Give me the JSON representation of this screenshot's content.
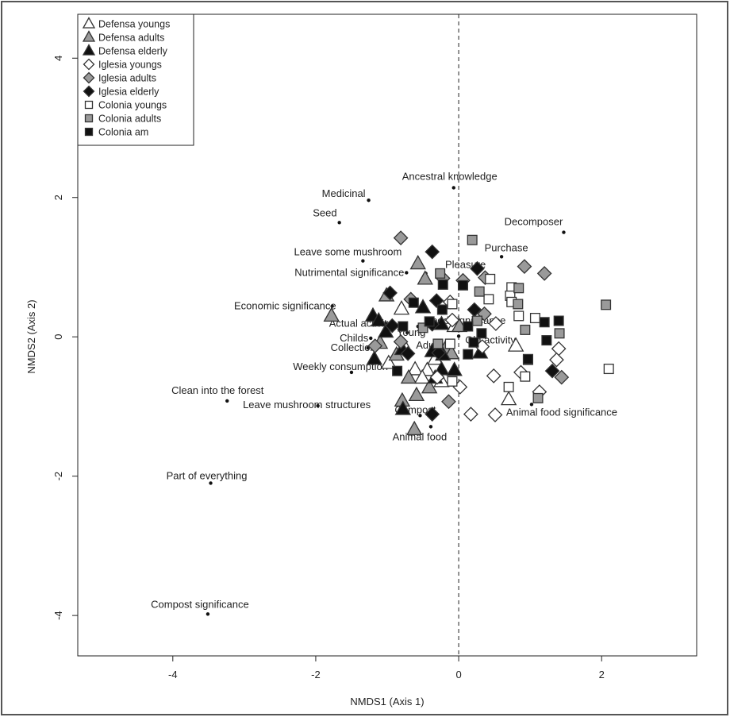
{
  "chart_data": {
    "type": "scatter",
    "title": "",
    "xlabel": "NMDS1 (Axis 1)",
    "ylabel": "NMDS2 (Axis 2)",
    "xlim": [
      -5.33,
      3.33
    ],
    "ylim": [
      -4.58,
      4.63
    ],
    "xticks": [
      -4,
      -2,
      0,
      2
    ],
    "yticks": [
      -4,
      -2,
      0,
      2,
      4
    ],
    "xtick_labels": [
      "-4",
      "-2",
      "0",
      "2"
    ],
    "ytick_labels": [
      "-4",
      "-2",
      "0",
      "2",
      "4"
    ],
    "grid": false,
    "reference_line": {
      "axis": "x",
      "value": 0,
      "style": "dashed"
    },
    "legend_position": "top-left",
    "colors": {
      "open": "#ffffff",
      "gray": "#9a9a9a",
      "black": "#111111",
      "stroke": "#333333"
    },
    "series": [
      {
        "name": "Defensa youngs",
        "marker": "triangle",
        "fill": "open",
        "points": [
          [
            -0.8,
            0.4
          ],
          [
            0.8,
            -0.13
          ],
          [
            0.7,
            -0.9
          ],
          [
            -0.98,
            -0.38
          ],
          [
            -0.33,
            -0.32
          ],
          [
            -0.24,
            -0.64
          ],
          [
            -0.44,
            -0.48
          ],
          [
            -0.12,
            -0.24
          ],
          [
            -0.61,
            -0.47
          ],
          [
            -0.76,
            -0.14
          ],
          [
            -0.06,
            0.15
          ],
          [
            -0.51,
            -0.59
          ]
        ]
      },
      {
        "name": "Defensa adults",
        "marker": "triangle",
        "fill": "gray",
        "points": [
          [
            -0.57,
            1.05
          ],
          [
            -0.47,
            0.83
          ],
          [
            -1.01,
            0.59
          ],
          [
            -1.78,
            0.3
          ],
          [
            -0.7,
            -0.59
          ],
          [
            -0.59,
            -0.84
          ],
          [
            -0.62,
            -1.33
          ],
          [
            -0.79,
            -0.92
          ],
          [
            0.01,
            0.15
          ],
          [
            -0.18,
            -0.16
          ],
          [
            -0.41,
            -0.73
          ],
          [
            -0.1,
            -0.24
          ],
          [
            -1.1,
            -0.09
          ],
          [
            -0.87,
            -0.26
          ]
        ]
      },
      {
        "name": "Defensa elderly",
        "marker": "triangle",
        "fill": "black",
        "points": [
          [
            -0.5,
            0.42
          ],
          [
            -1.2,
            0.3
          ],
          [
            -1.12,
            0.23
          ],
          [
            -1.02,
            0.07
          ],
          [
            -1.18,
            -0.32
          ],
          [
            -0.37,
            -0.21
          ],
          [
            -0.79,
            -0.18
          ],
          [
            -0.24,
            -0.47
          ],
          [
            -0.06,
            -0.48
          ],
          [
            -0.33,
            -0.59
          ],
          [
            -0.78,
            -1.04
          ],
          [
            0.3,
            -0.23
          ],
          [
            -0.22,
            -0.26
          ],
          [
            -0.24,
            0.18
          ]
        ]
      },
      {
        "name": "Iglesia youngs",
        "marker": "diamond",
        "fill": "open",
        "points": [
          [
            0.02,
            -0.72
          ],
          [
            0.33,
            -0.14
          ],
          [
            0.87,
            -0.51
          ],
          [
            1.4,
            -0.17
          ],
          [
            1.37,
            -0.33
          ],
          [
            1.13,
            -0.79
          ],
          [
            0.17,
            -1.11
          ],
          [
            0.51,
            -1.12
          ],
          [
            0.49,
            -0.56
          ],
          [
            -0.12,
            0.5
          ],
          [
            -0.09,
            0.24
          ],
          [
            -0.3,
            -0.58
          ],
          [
            0.52,
            0.19
          ]
        ]
      },
      {
        "name": "Iglesia adults",
        "marker": "diamond",
        "fill": "gray",
        "points": [
          [
            -0.81,
            1.42
          ],
          [
            0.92,
            1.01
          ],
          [
            1.2,
            0.91
          ],
          [
            0.36,
            0.33
          ],
          [
            -1.17,
            -0.13
          ],
          [
            -0.22,
            0.84
          ],
          [
            -0.67,
            0.54
          ],
          [
            0.06,
            0.81
          ],
          [
            -0.14,
            -0.93
          ],
          [
            1.44,
            -0.58
          ],
          [
            0.37,
            0.85
          ],
          [
            -0.81,
            -0.07
          ]
        ]
      },
      {
        "name": "Iglesia elderly",
        "marker": "diamond",
        "fill": "black",
        "points": [
          [
            -0.37,
            1.22
          ],
          [
            0.26,
            0.98
          ],
          [
            -0.96,
            0.63
          ],
          [
            -0.31,
            0.52
          ],
          [
            0.22,
            0.39
          ],
          [
            -0.37,
            0.18
          ],
          [
            -0.71,
            -0.24
          ],
          [
            -0.28,
            -0.23
          ],
          [
            -0.37,
            -1.11
          ],
          [
            1.31,
            -0.49
          ],
          [
            -0.93,
            0.16
          ]
        ]
      },
      {
        "name": "Colonia youngs",
        "marker": "square",
        "fill": "open",
        "points": [
          [
            0.44,
            0.83
          ],
          [
            0.74,
            0.71
          ],
          [
            0.72,
            0.59
          ],
          [
            0.74,
            0.5
          ],
          [
            0.42,
            0.54
          ],
          [
            0.84,
            0.3
          ],
          [
            1.07,
            0.27
          ],
          [
            0.93,
            -0.57
          ],
          [
            0.7,
            -0.72
          ],
          [
            2.1,
            -0.46
          ],
          [
            -0.09,
            -0.64
          ],
          [
            -0.09,
            0.47
          ],
          [
            -0.12,
            -0.1
          ]
        ]
      },
      {
        "name": "Colonia adults",
        "marker": "square",
        "fill": "gray",
        "points": [
          [
            0.19,
            1.39
          ],
          [
            -0.26,
            0.91
          ],
          [
            0.84,
            0.7
          ],
          [
            0.83,
            0.47
          ],
          [
            0.29,
            0.65
          ],
          [
            0.93,
            0.1
          ],
          [
            1.41,
            0.05
          ],
          [
            2.06,
            0.46
          ],
          [
            1.11,
            -0.88
          ],
          [
            0.97,
            -0.33
          ],
          [
            -0.29,
            -0.1
          ],
          [
            -0.5,
            0.13
          ],
          [
            0.26,
            0.23
          ]
        ]
      },
      {
        "name": "Colonia am",
        "marker": "square",
        "fill": "black",
        "points": [
          [
            -0.22,
            0.75
          ],
          [
            0.06,
            0.74
          ],
          [
            -0.23,
            0.39
          ],
          [
            -0.78,
            0.15
          ],
          [
            -0.63,
            0.49
          ],
          [
            0.32,
            0.05
          ],
          [
            0.13,
            -0.25
          ],
          [
            1.2,
            0.21
          ],
          [
            1.4,
            0.23
          ],
          [
            1.23,
            -0.05
          ],
          [
            0.97,
            -0.32
          ],
          [
            -0.86,
            -0.49
          ],
          [
            -0.41,
            0.22
          ],
          [
            0.21,
            -0.08
          ],
          [
            0.13,
            0.15
          ]
        ]
      }
    ],
    "variables": [
      {
        "label": "Ancestral knowledge",
        "x": -0.07,
        "y": 2.14
      },
      {
        "label": "Medicinal",
        "x": -1.26,
        "y": 1.96
      },
      {
        "label": "Seed",
        "x": -1.67,
        "y": 1.64
      },
      {
        "label": "Decomposer",
        "x": 1.47,
        "y": 1.5
      },
      {
        "label": "Purchase",
        "x": 0.6,
        "y": 1.15
      },
      {
        "label": "Leave some mushroom",
        "x": -1.34,
        "y": 1.09
      },
      {
        "label": "Pleasure",
        "x": -0.46,
        "y": 0.91
      },
      {
        "label": "Nutrimental significance",
        "x": -0.73,
        "y": 0.92
      },
      {
        "label": "Economic significance",
        "x": -1.77,
        "y": 0.44
      },
      {
        "label": "Actual activity",
        "x": -1.02,
        "y": 0.19
      },
      {
        "label": "Food significance",
        "x": -0.57,
        "y": 0.15
      },
      {
        "label": "Childs",
        "x": -1.23,
        "y": -0.02
      },
      {
        "label": "Young",
        "x": -0.72,
        "y": 0.06
      },
      {
        "label": "Adult",
        "x": -0.3,
        "y": -0.08
      },
      {
        "label": "Old activity",
        "x": 0.0,
        "y": 0.01
      },
      {
        "label": "Collection",
        "x": -1.27,
        "y": -0.16
      },
      {
        "label": "Weekly consumption",
        "x": -1.5,
        "y": -0.51
      },
      {
        "label": "Leave mushroom structures",
        "x": -1.97,
        "y": -0.99
      },
      {
        "label": "Clean into the forest",
        "x": -3.24,
        "y": -0.92
      },
      {
        "label": "Compost",
        "x": -0.54,
        "y": -1.13
      },
      {
        "label": "Animal food",
        "x": -0.39,
        "y": -1.29
      },
      {
        "label": "Animal food significance",
        "x": 1.02,
        "y": -0.97
      },
      {
        "label": "Part of everything",
        "x": -3.47,
        "y": -2.1
      },
      {
        "label": "Compost significance",
        "x": -3.51,
        "y": -3.98
      }
    ]
  }
}
